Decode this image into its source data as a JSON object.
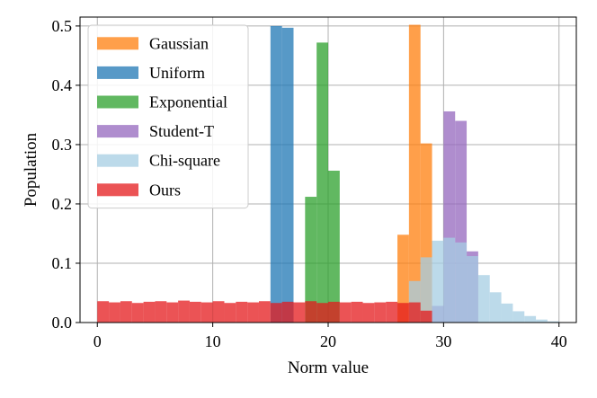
{
  "chart_data": {
    "type": "bar",
    "title": "",
    "xlabel": "Norm value",
    "ylabel": "Population",
    "xlim": [
      -1.5,
      41.5
    ],
    "ylim": [
      0,
      0.515
    ],
    "x_ticks": [
      0,
      10,
      20,
      30,
      40
    ],
    "y_ticks": [
      0.0,
      0.1,
      0.2,
      0.3,
      0.4,
      0.5
    ],
    "x_tick_labels": [
      "0",
      "10",
      "20",
      "30",
      "40"
    ],
    "y_tick_labels": [
      "0.0",
      "0.1",
      "0.2",
      "0.3",
      "0.4",
      "0.5"
    ],
    "grid": true,
    "legend_position": "top-left",
    "bar_alpha": 0.75,
    "series": [
      {
        "name": "Uniform",
        "color": "#1f77b4",
        "bins": [
          {
            "x0": 15.0,
            "x1": 16.0,
            "value": 0.5
          },
          {
            "x0": 16.0,
            "x1": 17.0,
            "value": 0.497
          }
        ]
      },
      {
        "name": "Exponential",
        "color": "#2ca02c",
        "bins": [
          {
            "x0": 18.0,
            "x1": 19.0,
            "value": 0.212
          },
          {
            "x0": 19.0,
            "x1": 20.0,
            "value": 0.472
          },
          {
            "x0": 20.0,
            "x1": 21.0,
            "value": 0.256
          }
        ]
      },
      {
        "name": "Gaussian",
        "color": "#ff7f0e",
        "bins": [
          {
            "x0": 26.0,
            "x1": 27.0,
            "value": 0.148
          },
          {
            "x0": 27.0,
            "x1": 28.0,
            "value": 0.502
          },
          {
            "x0": 28.0,
            "x1": 29.0,
            "value": 0.302
          }
        ]
      },
      {
        "name": "Student-T",
        "color": "#9467bd",
        "bins": [
          {
            "x0": 29.0,
            "x1": 30.0,
            "value": 0.028
          },
          {
            "x0": 30.0,
            "x1": 31.0,
            "value": 0.356
          },
          {
            "x0": 31.0,
            "x1": 32.0,
            "value": 0.34
          },
          {
            "x0": 32.0,
            "x1": 33.0,
            "value": 0.12
          }
        ]
      },
      {
        "name": "Chi-square",
        "color": "#a6cee3",
        "bins": [
          {
            "x0": 27.0,
            "x1": 28.0,
            "value": 0.07
          },
          {
            "x0": 28.0,
            "x1": 29.0,
            "value": 0.11
          },
          {
            "x0": 29.0,
            "x1": 30.0,
            "value": 0.138
          },
          {
            "x0": 30.0,
            "x1": 31.0,
            "value": 0.143
          },
          {
            "x0": 31.0,
            "x1": 32.0,
            "value": 0.135
          },
          {
            "x0": 32.0,
            "x1": 33.0,
            "value": 0.112
          },
          {
            "x0": 33.0,
            "x1": 34.0,
            "value": 0.08
          },
          {
            "x0": 34.0,
            "x1": 35.0,
            "value": 0.051
          },
          {
            "x0": 35.0,
            "x1": 36.0,
            "value": 0.032
          },
          {
            "x0": 36.0,
            "x1": 37.0,
            "value": 0.019
          },
          {
            "x0": 37.0,
            "x1": 38.0,
            "value": 0.011
          },
          {
            "x0": 38.0,
            "x1": 39.0,
            "value": 0.005
          },
          {
            "x0": 39.0,
            "x1": 40.0,
            "value": 0.002
          }
        ]
      },
      {
        "name": "Ours",
        "color": "#e41a1c",
        "bins": [
          {
            "x0": 0.0,
            "x1": 1.0,
            "value": 0.036
          },
          {
            "x0": 1.0,
            "x1": 2.0,
            "value": 0.034
          },
          {
            "x0": 2.0,
            "x1": 3.0,
            "value": 0.036
          },
          {
            "x0": 3.0,
            "x1": 4.0,
            "value": 0.033
          },
          {
            "x0": 4.0,
            "x1": 5.0,
            "value": 0.035
          },
          {
            "x0": 5.0,
            "x1": 6.0,
            "value": 0.036
          },
          {
            "x0": 6.0,
            "x1": 7.0,
            "value": 0.034
          },
          {
            "x0": 7.0,
            "x1": 8.0,
            "value": 0.037
          },
          {
            "x0": 8.0,
            "x1": 9.0,
            "value": 0.035
          },
          {
            "x0": 9.0,
            "x1": 10.0,
            "value": 0.034
          },
          {
            "x0": 10.0,
            "x1": 11.0,
            "value": 0.036
          },
          {
            "x0": 11.0,
            "x1": 12.0,
            "value": 0.033
          },
          {
            "x0": 12.0,
            "x1": 13.0,
            "value": 0.035
          },
          {
            "x0": 13.0,
            "x1": 14.0,
            "value": 0.034
          },
          {
            "x0": 14.0,
            "x1": 15.0,
            "value": 0.036
          },
          {
            "x0": 15.0,
            "x1": 16.0,
            "value": 0.033
          },
          {
            "x0": 16.0,
            "x1": 17.0,
            "value": 0.035
          },
          {
            "x0": 17.0,
            "x1": 18.0,
            "value": 0.034
          },
          {
            "x0": 18.0,
            "x1": 19.0,
            "value": 0.036
          },
          {
            "x0": 19.0,
            "x1": 20.0,
            "value": 0.033
          },
          {
            "x0": 20.0,
            "x1": 21.0,
            "value": 0.035
          },
          {
            "x0": 21.0,
            "x1": 22.0,
            "value": 0.034
          },
          {
            "x0": 22.0,
            "x1": 23.0,
            "value": 0.035
          },
          {
            "x0": 23.0,
            "x1": 24.0,
            "value": 0.033
          },
          {
            "x0": 24.0,
            "x1": 25.0,
            "value": 0.034
          },
          {
            "x0": 25.0,
            "x1": 26.0,
            "value": 0.035
          },
          {
            "x0": 26.0,
            "x1": 27.0,
            "value": 0.033
          },
          {
            "x0": 27.0,
            "x1": 28.0,
            "value": 0.034
          },
          {
            "x0": 28.0,
            "x1": 29.0,
            "value": 0.02
          }
        ]
      }
    ],
    "legend": [
      {
        "label": "Gaussian",
        "color": "#ff7f0e"
      },
      {
        "label": "Uniform",
        "color": "#1f77b4"
      },
      {
        "label": "Exponential",
        "color": "#2ca02c"
      },
      {
        "label": "Student-T",
        "color": "#9467bd"
      },
      {
        "label": "Chi-square",
        "color": "#a6cee3"
      },
      {
        "label": "Ours",
        "color": "#e41a1c"
      }
    ]
  }
}
